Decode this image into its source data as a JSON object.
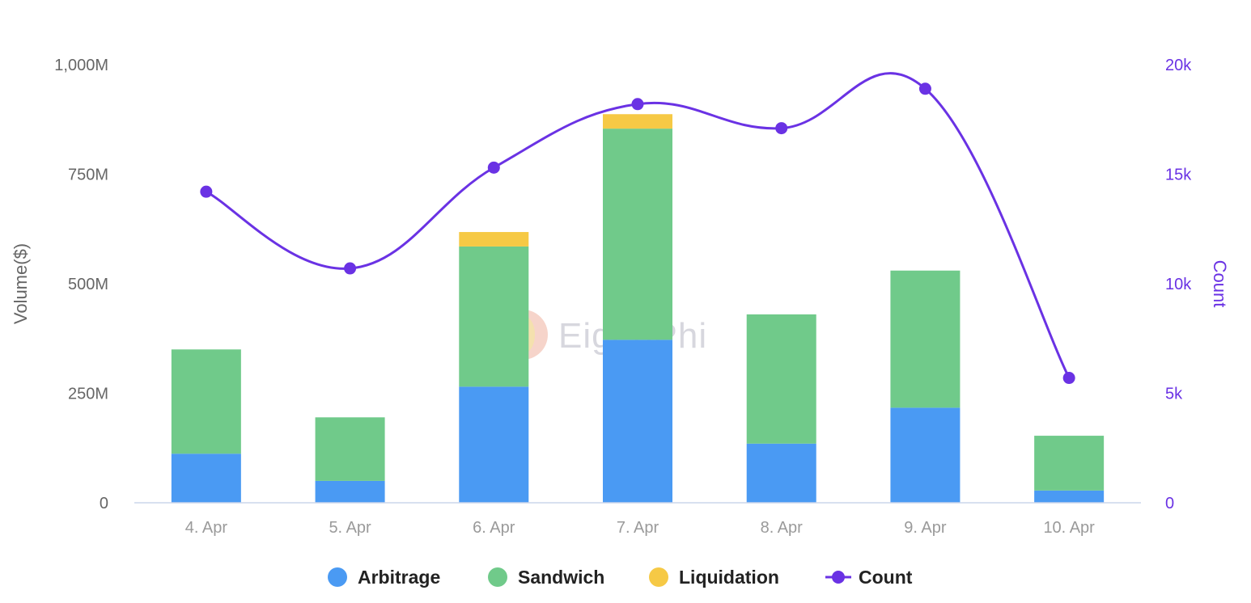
{
  "chart_data": {
    "type": "bar",
    "stacked": true,
    "categories": [
      "4. Apr",
      "5. Apr",
      "6. Apr",
      "7. Apr",
      "8. Apr",
      "9. Apr",
      "10. Apr"
    ],
    "series": [
      {
        "name": "Arbitrage",
        "type": "bar",
        "axis": "left",
        "color": "#4a9af3",
        "values": [
          112,
          50,
          265,
          372,
          135,
          217,
          28
        ]
      },
      {
        "name": "Sandwich",
        "type": "bar",
        "axis": "left",
        "color": "#70ca8a",
        "values": [
          238,
          145,
          320,
          482,
          295,
          313,
          125
        ]
      },
      {
        "name": "Liquidation",
        "type": "bar",
        "axis": "left",
        "color": "#f6c945",
        "values": [
          0,
          0,
          33,
          33,
          0,
          0,
          0
        ]
      },
      {
        "name": "Count",
        "type": "line",
        "axis": "right",
        "color": "#6a32e4",
        "values": [
          14200,
          10700,
          15300,
          18200,
          17100,
          18900,
          5700
        ]
      }
    ],
    "left_axis": {
      "title": "Volume($)",
      "range": [
        0,
        1000
      ],
      "ticks": [
        0,
        250,
        500,
        750,
        1000
      ],
      "tick_labels": [
        "0",
        "250M",
        "500M",
        "750M",
        "1,000M"
      ]
    },
    "right_axis": {
      "title": "Count",
      "range": [
        0,
        20000
      ],
      "ticks": [
        0,
        5000,
        10000,
        15000,
        20000
      ],
      "tick_labels": [
        "0",
        "5k",
        "10k",
        "15k",
        "20k"
      ]
    },
    "legend": {
      "placement": "bottom-center",
      "items": [
        "Arbitrage",
        "Sandwich",
        "Liquidation",
        "Count"
      ]
    },
    "grid": false,
    "watermark": "EigenPhi"
  }
}
